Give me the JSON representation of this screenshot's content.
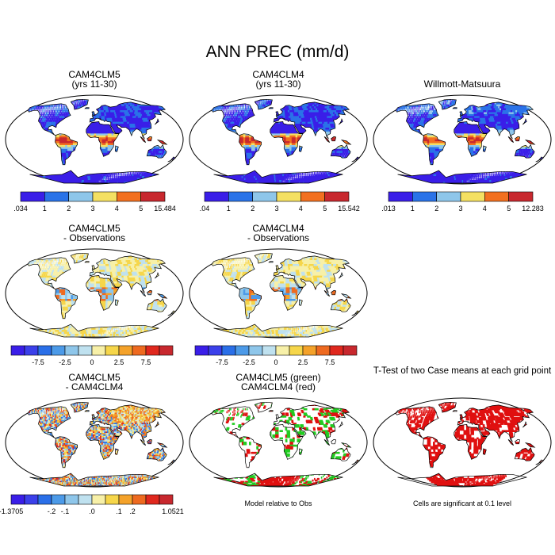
{
  "figure": {
    "title": "ANN PREC (mm/d)"
  },
  "colors": {
    "seq": [
      "#3a1ee8",
      "#2a73e8",
      "#8ec6ea",
      "#f4e062",
      "#f27020",
      "#c8282e"
    ],
    "diff": [
      "#3a1ee8",
      "#3b40ea",
      "#2a6fe8",
      "#4c9ae8",
      "#8ec6ea",
      "#bfe1ef",
      "#f7f0a8",
      "#f6d64a",
      "#f4a22a",
      "#ee6a20",
      "#e0281e",
      "#c8282e"
    ],
    "ocean": "#ffffff",
    "coast": "#000000",
    "sig_model_green": "#22cc22",
    "sig_obs_red": "#e01010"
  },
  "panels": [
    {
      "id": "p1",
      "title": [
        "CAM4CLM5",
        "(yrs 11-30)"
      ],
      "kind": "field",
      "colorbar": {
        "min_label": ".034",
        "ticks": [
          "1",
          "2",
          "3",
          "4",
          "5"
        ],
        "max_label": "15.484"
      }
    },
    {
      "id": "p2",
      "title": [
        "CAM4CLM4",
        "(yrs 11-30)"
      ],
      "kind": "field",
      "colorbar": {
        "min_label": ".04",
        "ticks": [
          "1",
          "2",
          "3",
          "4",
          "5"
        ],
        "max_label": "15.542"
      }
    },
    {
      "id": "p3",
      "title": [
        "Willmott-Matsuura"
      ],
      "kind": "field",
      "colorbar": {
        "min_label": ".013",
        "ticks": [
          "1",
          "2",
          "3",
          "4",
          "5"
        ],
        "max_label": "12.283"
      }
    },
    {
      "id": "p4",
      "title": [
        "CAM4CLM5",
        "- Observations"
      ],
      "kind": "bias",
      "colorbar": {
        "ticks": [
          "-7.5",
          "-2.5",
          "0",
          "2.5",
          "7.5"
        ]
      }
    },
    {
      "id": "p5",
      "title": [
        "CAM4CLM4",
        "- Observations"
      ],
      "kind": "bias",
      "colorbar": {
        "ticks": [
          "-7.5",
          "-2.5",
          "0",
          "2.5",
          "7.5"
        ]
      }
    },
    {
      "id": "p6",
      "title": [
        "CAM4CLM5",
        "- CAM4CLM4"
      ],
      "kind": "diff",
      "colorbar": {
        "min_label": "-1.3705",
        "ticks": [
          "-.2",
          "-.1",
          ".0",
          ".1",
          ".2"
        ],
        "max_label": "1.0521"
      }
    },
    {
      "id": "p7",
      "title": [
        "CAM4CLM5 (green)",
        "CAM4CLM4 (red)"
      ],
      "kind": "model_vs_obs",
      "note": "Model relative to Obs"
    },
    {
      "id": "p8",
      "title": [
        "T-Test of two Case means at each grid point"
      ],
      "kind": "ttest",
      "note": "Cells are significant at 0.1 level"
    }
  ],
  "chart_data": {
    "type": "heatmap",
    "title": "ANN PREC (mm/d)",
    "panels": [
      {
        "title": "CAM4CLM5 (yrs 11-30)",
        "field_range": [
          0.034,
          15.484
        ],
        "colorbar_levels": [
          1,
          2,
          3,
          4,
          5
        ]
      },
      {
        "title": "CAM4CLM4 (yrs 11-30)",
        "field_range": [
          0.04,
          15.542
        ],
        "colorbar_levels": [
          1,
          2,
          3,
          4,
          5
        ]
      },
      {
        "title": "Willmott-Matsuura",
        "field_range": [
          0.013,
          12.283
        ],
        "colorbar_levels": [
          1,
          2,
          3,
          4,
          5
        ]
      },
      {
        "title": "CAM4CLM5 - Observations",
        "colorbar_levels": [
          -7.5,
          -2.5,
          0,
          2.5,
          7.5
        ]
      },
      {
        "title": "CAM4CLM4 - Observations",
        "colorbar_levels": [
          -7.5,
          -2.5,
          0,
          2.5,
          7.5
        ]
      },
      {
        "title": "CAM4CLM5 - CAM4CLM4",
        "field_range": [
          -1.3705,
          1.0521
        ],
        "colorbar_levels": [
          -0.2,
          -0.1,
          0.0,
          0.1,
          0.2
        ]
      },
      {
        "title": "CAM4CLM5 (green) CAM4CLM4 (red)"
      },
      {
        "title": "T-Test of two Case means at each grid point"
      }
    ]
  }
}
